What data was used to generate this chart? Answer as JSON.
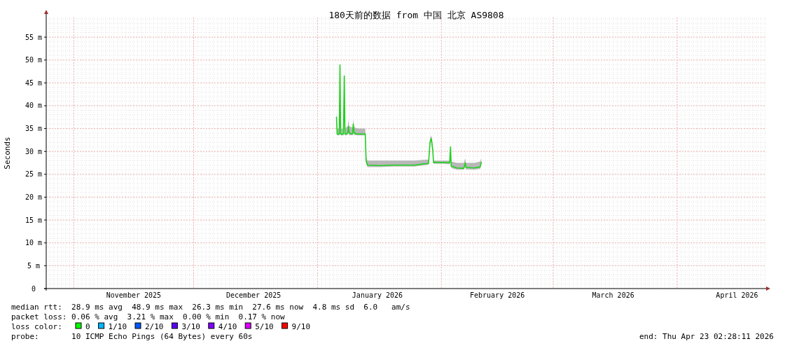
{
  "chart_data": {
    "type": "line",
    "title": "180天前的数据 from 中国 北京 AS9808",
    "ylabel": "Seconds",
    "xlim": [
      "2025-10-25T02:28",
      "2026-04-23T02:28"
    ],
    "xticks": [
      {
        "value": "2025-11-01",
        "label": null
      },
      {
        "value": "2025-11-16",
        "label": "November 2025"
      },
      {
        "value": "2025-12-01",
        "label": null
      },
      {
        "value": "2025-12-16",
        "label": "December 2025"
      },
      {
        "value": "2026-01-01",
        "label": null
      },
      {
        "value": "2026-01-16",
        "label": "January 2026"
      },
      {
        "value": "2026-02-01",
        "label": null
      },
      {
        "value": "2026-02-15",
        "label": "February 2026"
      },
      {
        "value": "2026-03-01",
        "label": null
      },
      {
        "value": "2026-03-16",
        "label": "March 2026"
      },
      {
        "value": "2026-04-01",
        "label": null
      },
      {
        "value": "2026-04-16",
        "label": "April 2026"
      }
    ],
    "ylim": [
      0,
      59.3
    ],
    "yticks": [
      0,
      {
        "value": 5,
        "label": "5 m"
      },
      {
        "value": 10,
        "label": "10 m"
      },
      {
        "value": 15,
        "label": "15 m"
      },
      {
        "value": 20,
        "label": "20 m"
      },
      {
        "value": 25,
        "label": "25 m"
      },
      {
        "value": 30,
        "label": "30 m"
      },
      {
        "value": 35,
        "label": "35 m"
      },
      {
        "value": 40,
        "label": "40 m"
      },
      {
        "value": 45,
        "label": "45 m"
      },
      {
        "value": 50,
        "label": "50 m"
      },
      {
        "value": 55,
        "label": "55 m"
      }
    ],
    "grid": true,
    "marker": "none",
    "line_style": "solid",
    "series": [
      {
        "color": "#20d020",
        "x": [
          "2026-01-05T18:00",
          "2026-01-05T22:00",
          "2026-01-06T11:00",
          "2026-01-06T15:00",
          "2026-01-06T19:00",
          "2026-01-07T12:00",
          "2026-01-07T17:00",
          "2026-01-07T21:00",
          "2026-01-08T14:00",
          "2026-01-08T18:00",
          "2026-01-08T22:00",
          "2026-01-09T19:00",
          "2026-01-09T23:00",
          "2026-01-10T04:00",
          "2026-01-11T05:00",
          "2026-01-12T23:00",
          "2026-01-13T04:00",
          "2026-01-13T12:00",
          "2026-01-16T12:00",
          "2026-01-20T00:00",
          "2026-01-25T07:00",
          "2026-01-27T22:00",
          "2026-01-28T19:00",
          "2026-01-29T04:00",
          "2026-01-29T12:00",
          "2026-01-29T21:00",
          "2026-01-30T01:00",
          "2026-02-01T08:00",
          "2026-02-03T02:00",
          "2026-02-03T07:00",
          "2026-02-03T11:00",
          "2026-02-04T21:00",
          "2026-02-06T15:00",
          "2026-02-07T00:00",
          "2026-02-07T03:00",
          "2026-02-09T07:00",
          "2026-02-10T17:00",
          "2026-02-11T00:00"
        ],
        "values": [
          37.5,
          33.8,
          33.8,
          48.9,
          33.8,
          33.8,
          46.5,
          33.8,
          34,
          35.5,
          34,
          33.8,
          36,
          34,
          33.8,
          33.8,
          28,
          27,
          26.9,
          27,
          27,
          27.3,
          27.4,
          32,
          32.8,
          30,
          27.6,
          27.6,
          27.5,
          31,
          26.8,
          26.4,
          26.3,
          27.5,
          26.5,
          26.4,
          26.6,
          27.6
        ],
        "lower": [
          37,
          33.5,
          33.5,
          48,
          33.5,
          33.5,
          45.5,
          33.5,
          33.6,
          35,
          33.6,
          33.5,
          35.5,
          33.6,
          33.5,
          33.5,
          27.5,
          26.6,
          26.6,
          26.7,
          26.7,
          27,
          27.1,
          31.5,
          32.3,
          29.5,
          27.3,
          27.3,
          27.2,
          30.5,
          26.4,
          26,
          26,
          27,
          26.1,
          26,
          26.2,
          27.2
        ],
        "upper": [
          38.5,
          35,
          35,
          50,
          35,
          35,
          48,
          35,
          35.5,
          37,
          35.5,
          35.2,
          37,
          35.3,
          35,
          35,
          28.8,
          28,
          28,
          28,
          28,
          28.2,
          28.2,
          33,
          33.5,
          31,
          28,
          28,
          28,
          31.5,
          27.8,
          27.5,
          27.5,
          28.5,
          27.5,
          27.5,
          27.8,
          28.5
        ]
      }
    ],
    "annotations": [
      "median rtt:  28.9 ms avg  48.9 ms max  26.3 ms min  27.6 ms now  4.8 ms sd  6.0   am/s",
      "packet loss: 0.06 % avg  3.21 % max  0.00 % min  0.17 % now",
      "loss color:",
      "0",
      "1/10",
      "2/10",
      "3/10",
      "4/10",
      "5/10",
      "9/10",
      "probe:       10 ICMP Echo Pings (64 Bytes) every 60s",
      "end: Thu Apr 23 02:28:11 2026"
    ]
  }
}
